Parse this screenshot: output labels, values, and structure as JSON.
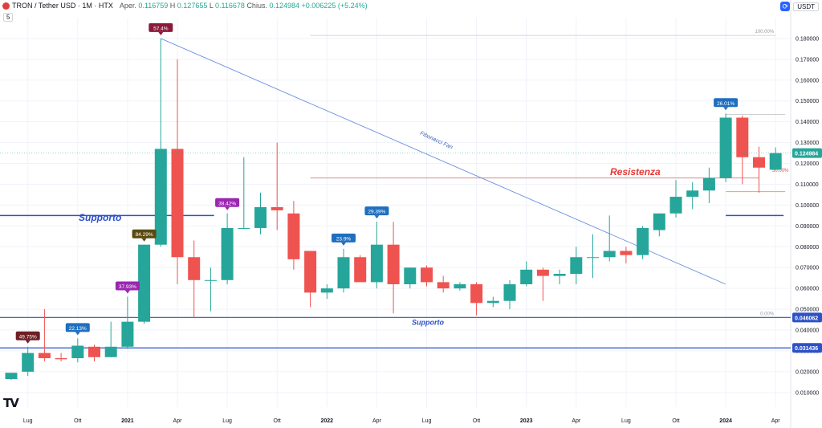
{
  "header": {
    "symbol_title": "TRON / Tether USD · 1M · HTX",
    "open_label": "Aper.",
    "open_value": "0.116759",
    "high_label": "H",
    "high_value": "0.127655",
    "low_label": "L",
    "low_value": "0.116678",
    "close_label": "Chius.",
    "close_value": "0.124984",
    "change_value": "+0.006225",
    "change_pct": "(+5.24%)",
    "interval_badge": "5",
    "currency_badge": "USDT",
    "logo_text": "TV"
  },
  "colors": {
    "up": "#26a69a",
    "down": "#ef5350",
    "support_line": "#2d51c8",
    "resist_line": "#d97b7b",
    "fan_line": "#6d8fe0",
    "text_primary": "#131722"
  },
  "annotations": {
    "supporto_upper": "Supporto",
    "supporto_lower": "Supporto",
    "resistenza": "Resistenza",
    "fib_fan": "Fibonacci Fan",
    "fib_100": "100.00%",
    "fib_50": "50.00%",
    "fib_0": "0.00%"
  },
  "price_labels": {
    "last": "0.124984",
    "support_1": "0.046062",
    "support_2": "0.031436"
  },
  "chart_data": {
    "type": "candlestick",
    "title": "TRON / Tether USD · 1M · HTX",
    "x_ticks": [
      "Lug",
      "Ott",
      "2021",
      "Apr",
      "Lug",
      "Ott",
      "2022",
      "Apr",
      "Lug",
      "Ott",
      "2023",
      "Apr",
      "Lug",
      "Ott",
      "2024",
      "Apr"
    ],
    "y_ticks": [
      "0.010000",
      "0.020000",
      "0.030000",
      "0.040000",
      "0.050000",
      "0.060000",
      "0.070000",
      "0.080000",
      "0.090000",
      "0.100000",
      "0.110000",
      "0.120000",
      "0.130000",
      "0.140000",
      "0.150000",
      "0.160000",
      "0.170000",
      "0.180000"
    ],
    "ylim": [
      0.003,
      0.19
    ],
    "candles": [
      {
        "o": 0.0165,
        "h": 0.0195,
        "l": 0.016,
        "c": 0.0195
      },
      {
        "o": 0.02,
        "h": 0.032,
        "l": 0.018,
        "c": 0.029
      },
      {
        "o": 0.029,
        "h": 0.05,
        "l": 0.025,
        "c": 0.0265
      },
      {
        "o": 0.0265,
        "h": 0.029,
        "l": 0.025,
        "c": 0.026
      },
      {
        "o": 0.0265,
        "h": 0.036,
        "l": 0.0245,
        "c": 0.0325
      },
      {
        "o": 0.032,
        "h": 0.033,
        "l": 0.025,
        "c": 0.027
      },
      {
        "o": 0.027,
        "h": 0.044,
        "l": 0.027,
        "c": 0.032
      },
      {
        "o": 0.032,
        "h": 0.056,
        "l": 0.031,
        "c": 0.044
      },
      {
        "o": 0.044,
        "h": 0.081,
        "l": 0.043,
        "c": 0.081
      },
      {
        "o": 0.081,
        "h": 0.18,
        "l": 0.08,
        "c": 0.127
      },
      {
        "o": 0.127,
        "h": 0.17,
        "l": 0.062,
        "c": 0.075
      },
      {
        "o": 0.075,
        "h": 0.083,
        "l": 0.046,
        "c": 0.064
      },
      {
        "o": 0.064,
        "h": 0.07,
        "l": 0.049,
        "c": 0.064
      },
      {
        "o": 0.064,
        "h": 0.096,
        "l": 0.062,
        "c": 0.089
      },
      {
        "o": 0.089,
        "h": 0.123,
        "l": 0.089,
        "c": 0.089
      },
      {
        "o": 0.089,
        "h": 0.106,
        "l": 0.086,
        "c": 0.099
      },
      {
        "o": 0.099,
        "h": 0.13,
        "l": 0.088,
        "c": 0.0975
      },
      {
        "o": 0.096,
        "h": 0.102,
        "l": 0.069,
        "c": 0.074
      },
      {
        "o": 0.078,
        "h": 0.078,
        "l": 0.051,
        "c": 0.058
      },
      {
        "o": 0.058,
        "h": 0.062,
        "l": 0.055,
        "c": 0.06
      },
      {
        "o": 0.06,
        "h": 0.079,
        "l": 0.058,
        "c": 0.075
      },
      {
        "o": 0.075,
        "h": 0.076,
        "l": 0.063,
        "c": 0.063
      },
      {
        "o": 0.063,
        "h": 0.092,
        "l": 0.06,
        "c": 0.081
      },
      {
        "o": 0.081,
        "h": 0.092,
        "l": 0.048,
        "c": 0.062
      },
      {
        "o": 0.062,
        "h": 0.07,
        "l": 0.06,
        "c": 0.07
      },
      {
        "o": 0.07,
        "h": 0.071,
        "l": 0.061,
        "c": 0.063
      },
      {
        "o": 0.063,
        "h": 0.066,
        "l": 0.058,
        "c": 0.06
      },
      {
        "o": 0.06,
        "h": 0.063,
        "l": 0.059,
        "c": 0.062
      },
      {
        "o": 0.062,
        "h": 0.063,
        "l": 0.047,
        "c": 0.053
      },
      {
        "o": 0.053,
        "h": 0.056,
        "l": 0.051,
        "c": 0.054
      },
      {
        "o": 0.054,
        "h": 0.064,
        "l": 0.05,
        "c": 0.062
      },
      {
        "o": 0.062,
        "h": 0.073,
        "l": 0.061,
        "c": 0.069
      },
      {
        "o": 0.069,
        "h": 0.07,
        "l": 0.054,
        "c": 0.066
      },
      {
        "o": 0.066,
        "h": 0.069,
        "l": 0.062,
        "c": 0.067
      },
      {
        "o": 0.067,
        "h": 0.08,
        "l": 0.062,
        "c": 0.075
      },
      {
        "o": 0.075,
        "h": 0.086,
        "l": 0.065,
        "c": 0.075
      },
      {
        "o": 0.075,
        "h": 0.095,
        "l": 0.073,
        "c": 0.078
      },
      {
        "o": 0.078,
        "h": 0.08,
        "l": 0.072,
        "c": 0.076
      },
      {
        "o": 0.076,
        "h": 0.09,
        "l": 0.074,
        "c": 0.089
      },
      {
        "o": 0.088,
        "h": 0.096,
        "l": 0.085,
        "c": 0.096
      },
      {
        "o": 0.096,
        "h": 0.112,
        "l": 0.094,
        "c": 0.104
      },
      {
        "o": 0.104,
        "h": 0.111,
        "l": 0.098,
        "c": 0.107
      },
      {
        "o": 0.107,
        "h": 0.118,
        "l": 0.101,
        "c": 0.113
      },
      {
        "o": 0.113,
        "h": 0.144,
        "l": 0.111,
        "c": 0.142
      },
      {
        "o": 0.142,
        "h": 0.143,
        "l": 0.11,
        "c": 0.123
      },
      {
        "o": 0.123,
        "h": 0.128,
        "l": 0.106,
        "c": 0.118
      },
      {
        "o": 0.117,
        "h": 0.1277,
        "l": 0.1167,
        "c": 0.125
      }
    ],
    "candle_dates": [
      "2020-06",
      "2020-07",
      "2020-08",
      "2020-09",
      "2020-10",
      "2020-11",
      "2020-12",
      "2021-01",
      "2021-02",
      "2021-03",
      "2021-04",
      "2021-05",
      "2021-06",
      "2021-07",
      "2021-08",
      "2021-09",
      "2021-10",
      "2021-11",
      "2021-12",
      "2022-01",
      "2022-02",
      "2022-03",
      "2022-04",
      "2022-05",
      "2022-06",
      "2022-07",
      "2022-08",
      "2022-09",
      "2022-10",
      "2022-11",
      "2022-12",
      "2023-01",
      "2023-02",
      "2023-03",
      "2023-04",
      "2023-05",
      "2023-06",
      "2023-07",
      "2023-08",
      "2023-09",
      "2023-10",
      "2023-11",
      "2023-12",
      "2024-01",
      "2024-02",
      "2024-03",
      "2024-04"
    ],
    "badges": [
      {
        "candle": 1,
        "text": "49.75%",
        "color": "#6e1f24"
      },
      {
        "candle": 4,
        "text": "22.13%",
        "color": "#1f6fc0"
      },
      {
        "candle": 7,
        "text": "37.93%",
        "color": "#9b27b0"
      },
      {
        "candle": 8,
        "text": "84.29%",
        "color": "#5a4a10"
      },
      {
        "candle": 9,
        "text": "57.4%",
        "color": "#8b1a3a"
      },
      {
        "candle": 13,
        "text": "38.42%",
        "color": "#9b27b0"
      },
      {
        "candle": 20,
        "text": "23.9%",
        "color": "#1f6fc0"
      },
      {
        "candle": 22,
        "text": "29.39%",
        "color": "#1f6fc0"
      },
      {
        "candle": 43,
        "text": "26.01%",
        "color": "#1f6fc0"
      }
    ],
    "support_levels": [
      0.046062,
      0.031436
    ],
    "supporto_upper_level": 0.095,
    "supporto_upper_end": "2021-05",
    "supporto_right_level": 0.095,
    "supporto_right_from": "2024-01",
    "resistance_level": 0.113,
    "resistance_from": "2021-12",
    "resistance_to": "2024-03",
    "fib_top_level": 0.1815,
    "fib_from": "2021-12",
    "fib_to": "2024-04",
    "fib_50_level": 0.1065,
    "fib_50_from": "2024-01",
    "fib_100_level": 0.1435,
    "fib_100_from": "2024-01",
    "fib_fan_line": [
      {
        "date": "2021-03",
        "price": 0.18
      },
      {
        "date": "2024-01",
        "price": 0.062
      }
    ],
    "last_price": 0.124984
  }
}
